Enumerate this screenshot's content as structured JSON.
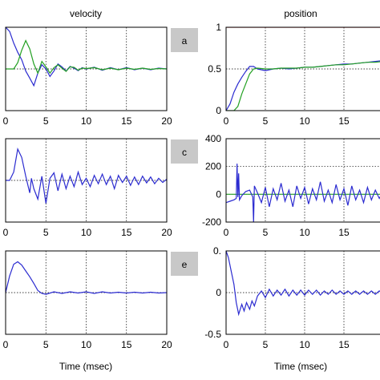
{
  "column_titles": [
    "velocity",
    "position"
  ],
  "xlabel": "Time (msec)",
  "badges": [
    "a",
    "c",
    "e"
  ],
  "colors": {
    "blue": "#2b2bd0",
    "green": "#22a022",
    "red": "#e02020",
    "frame": "#000000",
    "grid": "#000000",
    "badge_bg": "#c8c8c8"
  },
  "chart_data": [
    {
      "id": "panel-a",
      "type": "line",
      "column": "velocity",
      "badge": "a",
      "xlim": [
        0,
        20
      ],
      "xticks": [
        "0",
        "5",
        "10",
        "15",
        "20"
      ],
      "yticks": [],
      "ylim": [
        -1,
        1
      ],
      "grid": true,
      "series": [
        {
          "color": "blue",
          "x": [
            0,
            0.5,
            1,
            1.5,
            2,
            2.5,
            3,
            3.5,
            4,
            4.5,
            5,
            5.5,
            6,
            6.5,
            7,
            7.5,
            8,
            8.5,
            9,
            9.5,
            10,
            11,
            12,
            13,
            14,
            15,
            16,
            17,
            18,
            19,
            20
          ],
          "y": [
            1,
            0.9,
            0.62,
            0.4,
            0.22,
            -0.05,
            -0.22,
            -0.4,
            -0.1,
            0.1,
            0.0,
            -0.18,
            -0.05,
            0.12,
            0.05,
            -0.05,
            0.06,
            0.02,
            -0.04,
            0.03,
            0.0,
            0.04,
            -0.03,
            0.03,
            -0.02,
            0.03,
            -0.02,
            0.02,
            -0.02,
            0.02,
            0.0
          ]
        },
        {
          "color": "green",
          "x": [
            0,
            0.5,
            1,
            1.5,
            2,
            2.5,
            3,
            3.5,
            4,
            4.5,
            5,
            5.5,
            6,
            6.5,
            7,
            7.5,
            8,
            8.5,
            9,
            9.5,
            10,
            11,
            12,
            13,
            14,
            15,
            16,
            17,
            18,
            19,
            20
          ],
          "y": [
            0,
            0,
            0.0,
            0.15,
            0.45,
            0.68,
            0.48,
            0.12,
            -0.1,
            0.18,
            0.05,
            -0.1,
            0.03,
            0.1,
            0.02,
            -0.06,
            0.05,
            0.04,
            -0.03,
            0.02,
            0.01,
            0.03,
            -0.02,
            0.02,
            -0.02,
            0.02,
            -0.01,
            0.02,
            -0.01,
            0.01,
            0.0
          ]
        }
      ]
    },
    {
      "id": "panel-b",
      "type": "line",
      "column": "position",
      "xlim": [
        0,
        20
      ],
      "xticks": [
        "0",
        "5",
        "10",
        "15"
      ],
      "yticks": [
        "1",
        "0.5",
        "0"
      ],
      "ylim": [
        0,
        1
      ],
      "grid": true,
      "series": [
        {
          "color": "red",
          "x": [
            0,
            20
          ],
          "y": [
            1,
            1
          ]
        },
        {
          "color": "blue",
          "x": [
            0,
            0.5,
            1,
            1.5,
            2,
            2.5,
            3,
            3.5,
            4,
            5,
            6,
            7,
            8,
            9,
            10,
            11,
            12,
            13,
            14,
            15,
            16,
            17,
            18,
            19,
            20
          ],
          "y": [
            0,
            0.08,
            0.22,
            0.32,
            0.4,
            0.47,
            0.53,
            0.53,
            0.5,
            0.48,
            0.5,
            0.51,
            0.5,
            0.51,
            0.52,
            0.52,
            0.53,
            0.54,
            0.55,
            0.56,
            0.56,
            0.57,
            0.58,
            0.59,
            0.6
          ]
        },
        {
          "color": "green",
          "x": [
            0,
            1,
            1.5,
            2,
            2.5,
            3,
            3.5,
            4,
            5,
            6,
            7,
            8,
            9,
            10,
            11,
            12,
            13,
            14,
            15,
            16,
            17,
            18,
            19,
            20
          ],
          "y": [
            0,
            0,
            0.05,
            0.2,
            0.32,
            0.44,
            0.5,
            0.51,
            0.5,
            0.5,
            0.51,
            0.51,
            0.51,
            0.52,
            0.52,
            0.53,
            0.54,
            0.55,
            0.55,
            0.56,
            0.57,
            0.58,
            0.58,
            0.59
          ]
        }
      ]
    },
    {
      "id": "panel-c",
      "type": "line",
      "column": "velocity",
      "badge": "c",
      "xlim": [
        0,
        20
      ],
      "xticks": [
        "0",
        "5",
        "10",
        "15",
        "20"
      ],
      "yticks": [],
      "ylim": [
        -1,
        1
      ],
      "grid": true,
      "series": [
        {
          "color": "blue",
          "x": [
            0,
            0.5,
            1,
            1.5,
            2,
            2.5,
            3,
            3.2,
            3.5,
            4,
            4.5,
            5,
            5.5,
            6,
            6.5,
            7,
            7.5,
            8,
            8.5,
            9,
            9.5,
            10,
            10.5,
            11,
            11.5,
            12,
            12.5,
            13,
            13.5,
            14,
            14.5,
            15,
            15.5,
            16,
            16.5,
            17,
            17.5,
            18,
            18.5,
            19,
            19.5,
            20
          ],
          "y": [
            0,
            0,
            0.2,
            0.75,
            0.55,
            0.1,
            -0.3,
            0.05,
            -0.2,
            -0.45,
            0.1,
            -0.55,
            0.05,
            0.18,
            -0.25,
            0.15,
            -0.2,
            0.1,
            -0.15,
            0.2,
            -0.1,
            0.05,
            -0.15,
            0.12,
            -0.08,
            0.15,
            -0.1,
            0.1,
            -0.2,
            0.12,
            -0.05,
            0.1,
            -0.12,
            0.08,
            -0.1,
            0.1,
            -0.06,
            0.08,
            -0.08,
            0.05,
            -0.05,
            0.03
          ]
        }
      ]
    },
    {
      "id": "panel-d",
      "type": "line",
      "column": "position",
      "xlim": [
        0,
        20
      ],
      "xticks": [
        "0",
        "5",
        "10",
        "15"
      ],
      "yticks": [
        "400",
        "200",
        "0",
        "-200"
      ],
      "ylim": [
        -200,
        400
      ],
      "grid": true,
      "series": [
        {
          "color": "green",
          "x": [
            0,
            20
          ],
          "y": [
            0,
            0
          ]
        },
        {
          "color": "blue",
          "x": [
            0,
            0.5,
            1,
            1.3,
            1.4,
            1.5,
            1.6,
            1.7,
            2,
            2.5,
            3,
            3.4,
            3.5,
            3.6,
            4,
            4.5,
            5,
            5.5,
            6,
            6.5,
            7,
            7.5,
            8,
            8.5,
            9,
            9.5,
            10,
            10.5,
            11,
            11.5,
            12,
            12.5,
            13,
            13.5,
            14,
            14.5,
            15,
            15.5,
            16,
            16.5,
            17,
            17.5,
            18,
            18.5,
            19,
            19.5,
            20
          ],
          "y": [
            -60,
            -50,
            -40,
            -30,
            220,
            -20,
            150,
            -40,
            -10,
            20,
            30,
            -20,
            -200,
            60,
            10,
            -60,
            50,
            -90,
            40,
            -40,
            80,
            -50,
            30,
            -90,
            60,
            -30,
            50,
            -70,
            40,
            -40,
            90,
            -50,
            30,
            -60,
            70,
            -40,
            40,
            -80,
            60,
            -40,
            30,
            -60,
            50,
            -40,
            30,
            -30,
            20
          ]
        }
      ]
    },
    {
      "id": "panel-e",
      "type": "line",
      "column": "velocity",
      "badge": "e",
      "xlim": [
        0,
        20
      ],
      "xticks": [
        "0",
        "5",
        "10",
        "15",
        "20"
      ],
      "yticks": [],
      "ylim": [
        -1,
        1
      ],
      "grid": true,
      "series": [
        {
          "color": "blue",
          "x": [
            0,
            0.5,
            1,
            1.5,
            2,
            2.5,
            3,
            3.5,
            4,
            4.5,
            5,
            6,
            7,
            8,
            9,
            10,
            11,
            12,
            13,
            14,
            15,
            16,
            17,
            18,
            19,
            20
          ],
          "y": [
            0,
            0.4,
            0.68,
            0.74,
            0.66,
            0.52,
            0.38,
            0.22,
            0.05,
            -0.02,
            -0.04,
            0.02,
            -0.02,
            0.02,
            -0.01,
            0.02,
            -0.02,
            0.02,
            -0.01,
            0.01,
            -0.01,
            0.01,
            -0.01,
            0.01,
            -0.01,
            0.0
          ]
        }
      ]
    },
    {
      "id": "panel-f",
      "type": "line",
      "column": "position",
      "xlim": [
        0,
        20
      ],
      "xticks": [
        "0",
        "5",
        "10",
        "15"
      ],
      "yticks": [
        "0.",
        "0",
        "-0.5"
      ],
      "ylim": [
        -0.5,
        0.5
      ],
      "grid": true,
      "series": [
        {
          "color": "blue",
          "x": [
            0,
            0.3,
            0.6,
            1,
            1.3,
            1.6,
            2,
            2.3,
            2.6,
            3,
            3.3,
            3.6,
            4,
            4.5,
            5,
            5.5,
            6,
            6.5,
            7,
            7.5,
            8,
            8.5,
            9,
            9.5,
            10,
            10.5,
            11,
            11.5,
            12,
            12.5,
            13,
            13.5,
            14,
            14.5,
            15,
            15.5,
            16,
            16.5,
            17,
            17.5,
            18,
            18.5,
            19,
            19.5,
            20
          ],
          "y": [
            0.5,
            0.42,
            0.28,
            0.1,
            -0.12,
            -0.26,
            -0.14,
            -0.22,
            -0.12,
            -0.2,
            -0.1,
            -0.16,
            -0.04,
            0.02,
            -0.06,
            0.04,
            -0.04,
            0.03,
            -0.03,
            0.04,
            -0.04,
            0.03,
            -0.03,
            0.03,
            -0.03,
            0.03,
            -0.02,
            0.03,
            -0.03,
            0.02,
            -0.02,
            0.03,
            -0.02,
            0.02,
            -0.02,
            0.02,
            -0.02,
            0.02,
            -0.02,
            0.02,
            -0.02,
            0.02,
            -0.02,
            0.02,
            -0.01
          ]
        }
      ]
    }
  ]
}
